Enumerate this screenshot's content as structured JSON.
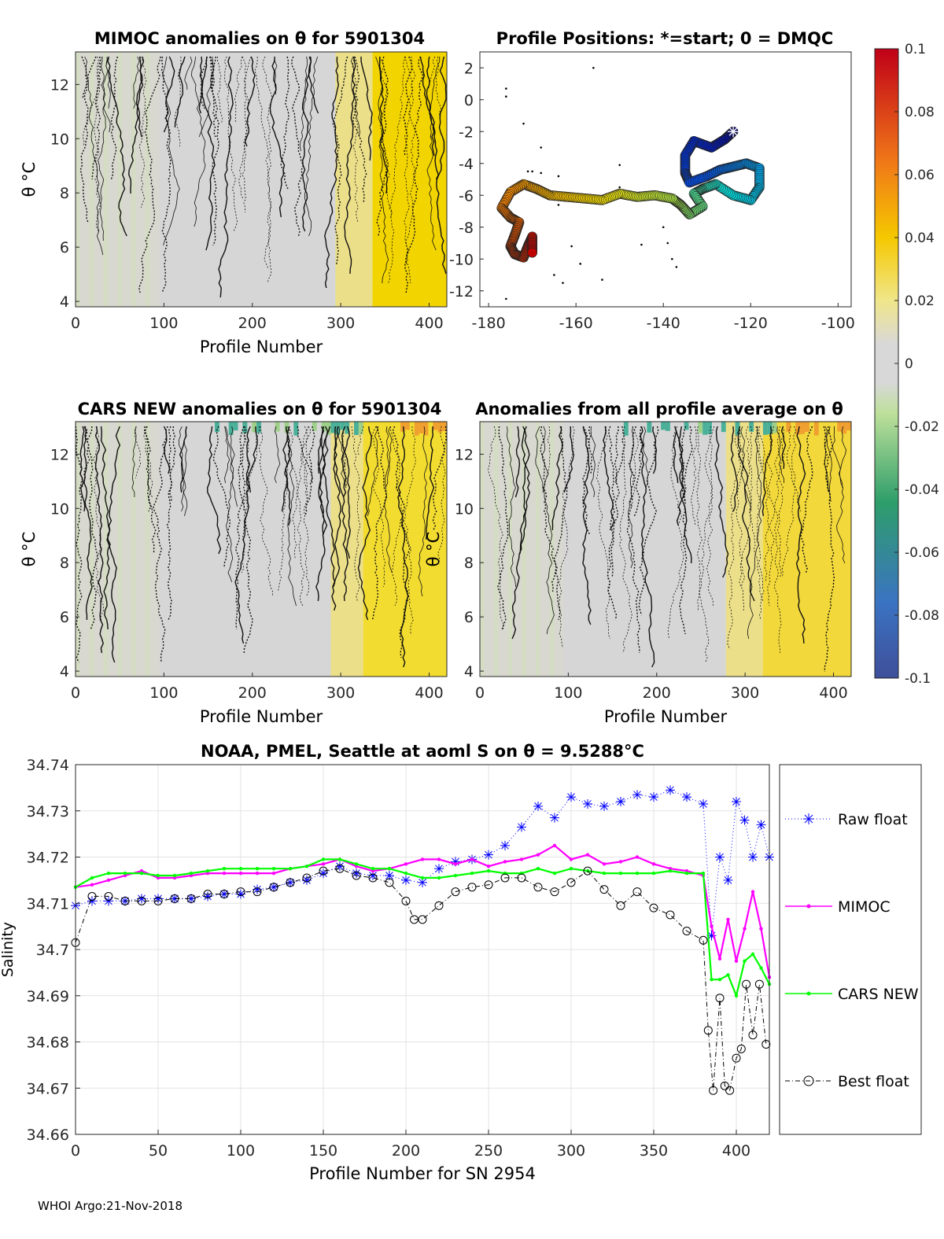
{
  "footer": "WHOI Argo:21-Nov-2018",
  "colorbar": {
    "ticks": [
      "0.1",
      "0.08",
      "0.06",
      "0.04",
      "0.02",
      "0",
      "-0.02",
      "-0.04",
      "-0.06",
      "-0.08",
      "-0.1"
    ],
    "range": [
      -0.1,
      0.1
    ]
  },
  "chart_data": [
    {
      "type": "heatmap",
      "title": "MIMOC anomalies on θ  for 5901304",
      "xlabel": "Profile Number",
      "ylabel": "θ °C",
      "xlim": [
        0,
        420
      ],
      "ylim": [
        3.8,
        13.2
      ],
      "xticks": [
        "0",
        "100",
        "200",
        "300",
        "400"
      ],
      "yticks": [
        "4",
        "6",
        "8",
        "10",
        "12"
      ],
      "description_values": {
        "low_profiles_anomaly": 0.0,
        "high_profiles_anomaly": 0.03
      }
    },
    {
      "type": "scatter",
      "title": "Profile Positions: *=start; 0 = DMQC",
      "xlim": [
        -182,
        -97
      ],
      "ylim": [
        -13,
        3
      ],
      "xticks": [
        "-180",
        "-160",
        "-140",
        "-120",
        "-100"
      ],
      "yticks": [
        "2",
        "0",
        "-2",
        "-4",
        "-6",
        "-8",
        "-10",
        "-12"
      ],
      "start": [
        -124,
        -2
      ],
      "track": [
        [
          -124,
          -2
        ],
        [
          -126,
          -2.5
        ],
        [
          -129,
          -3
        ],
        [
          -133,
          -2.6
        ],
        [
          -135,
          -3.5
        ],
        [
          -135,
          -4.6
        ],
        [
          -134,
          -5.2
        ],
        [
          -130,
          -4.8
        ],
        [
          -127,
          -4.4
        ],
        [
          -124,
          -4.2
        ],
        [
          -121,
          -4.0
        ],
        [
          -118,
          -4.3
        ],
        [
          -118,
          -5.5
        ],
        [
          -120,
          -6.3
        ],
        [
          -124,
          -6.0
        ],
        [
          -128,
          -5.3
        ],
        [
          -131,
          -5.6
        ],
        [
          -133,
          -5.9
        ],
        [
          -131,
          -6.7
        ],
        [
          -134,
          -7.2
        ],
        [
          -136,
          -6.6
        ],
        [
          -138,
          -6.2
        ],
        [
          -142,
          -6.0
        ],
        [
          -146,
          -6.1
        ],
        [
          -150,
          -5.9
        ],
        [
          -154,
          -6.3
        ],
        [
          -158,
          -6.2
        ],
        [
          -162,
          -6.1
        ],
        [
          -166,
          -6.0
        ],
        [
          -169,
          -5.6
        ],
        [
          -172,
          -5.3
        ],
        [
          -175,
          -5.8
        ],
        [
          -177,
          -6.8
        ],
        [
          -175,
          -7.4
        ],
        [
          -173,
          -7.7
        ],
        [
          -174,
          -8.5
        ],
        [
          -175,
          -9.2
        ],
        [
          -174,
          -9.7
        ],
        [
          -172,
          -9.9
        ],
        [
          -171,
          -9.2
        ],
        [
          -170,
          -8.6
        ],
        [
          -170,
          -9.6
        ]
      ],
      "scatter_points": [
        [
          -156,
          2
        ],
        [
          -176,
          0.7
        ],
        [
          -176,
          0.2
        ],
        [
          -172,
          -1.5
        ],
        [
          -168,
          -3
        ],
        [
          -170,
          -4.5
        ],
        [
          -168,
          -4.6
        ],
        [
          -164,
          -4.8
        ],
        [
          -171,
          -4.5
        ],
        [
          -150,
          -4.1
        ],
        [
          -140,
          -8
        ],
        [
          -139,
          -9
        ],
        [
          -138,
          -10
        ],
        [
          -137,
          -10.5
        ],
        [
          -165,
          -11
        ],
        [
          -163,
          -11.5
        ],
        [
          -154,
          -11.3
        ],
        [
          -176,
          -12.5
        ],
        [
          -149,
          -6.2
        ],
        [
          -150,
          -5.5
        ],
        [
          -164,
          -6.6
        ],
        [
          -161,
          -9.2
        ],
        [
          -159,
          -10.3
        ],
        [
          -145,
          -9.1
        ]
      ]
    },
    {
      "type": "heatmap",
      "title": "CARS NEW anomalies on θ for 5901304",
      "xlabel": "Profile Number",
      "ylabel": "θ °C",
      "xlim": [
        0,
        420
      ],
      "ylim": [
        3.8,
        13.2
      ],
      "xticks": [
        "0",
        "100",
        "200",
        "300",
        "400"
      ],
      "yticks": [
        "4",
        "6",
        "8",
        "10",
        "12"
      ]
    },
    {
      "type": "heatmap",
      "title": "Anomalies from all profile average on θ",
      "xlabel": "Profile Number",
      "ylabel": "θ °C",
      "xlim": [
        0,
        420
      ],
      "ylim": [
        3.8,
        13.2
      ],
      "xticks": [
        "0",
        "100",
        "200",
        "300",
        "400"
      ],
      "yticks": [
        "4",
        "6",
        "8",
        "10",
        "12"
      ]
    },
    {
      "type": "line",
      "title": "NOAA, PMEL, Seattle at aoml S on θ = 9.5288°C",
      "xlabel": "Profile Number for SN 2954",
      "ylabel": "Salinity",
      "xlim": [
        0,
        420
      ],
      "ylim": [
        34.66,
        34.74
      ],
      "xticks": [
        "0",
        "50",
        "100",
        "150",
        "200",
        "250",
        "300",
        "350",
        "400"
      ],
      "yticks": [
        "34.74",
        "34.73",
        "34.72",
        "34.71",
        "34.7",
        "34.69",
        "34.68",
        "34.67",
        "34.66"
      ],
      "grid": true,
      "legend_position": "right",
      "legend": [
        "Raw float",
        "MIMOC",
        "CARS NEW",
        "Best float"
      ],
      "series": [
        {
          "name": "Raw float",
          "color": "#0000ff",
          "x": [
            0,
            10,
            20,
            30,
            40,
            50,
            60,
            70,
            80,
            90,
            100,
            110,
            120,
            130,
            140,
            150,
            160,
            170,
            180,
            190,
            200,
            210,
            220,
            230,
            240,
            250,
            260,
            270,
            280,
            290,
            300,
            310,
            320,
            330,
            340,
            350,
            360,
            370,
            380,
            385,
            390,
            395,
            400,
            405,
            410,
            415,
            420
          ],
          "y": [
            34.7095,
            34.7105,
            34.7105,
            34.7105,
            34.711,
            34.711,
            34.711,
            34.711,
            34.7115,
            34.712,
            34.712,
            34.713,
            34.7135,
            34.7145,
            34.715,
            34.7165,
            34.718,
            34.7165,
            34.716,
            34.716,
            34.715,
            34.7145,
            34.7175,
            34.719,
            34.7195,
            34.7205,
            34.7225,
            34.7265,
            34.731,
            34.7285,
            34.733,
            34.7315,
            34.731,
            34.732,
            34.7335,
            34.733,
            34.7345,
            34.733,
            34.7315,
            34.703,
            34.72,
            34.715,
            34.732,
            34.728,
            34.72,
            34.727,
            34.72
          ]
        },
        {
          "name": "MIMOC",
          "color": "#ff00ff",
          "x": [
            0,
            10,
            20,
            30,
            40,
            50,
            60,
            70,
            80,
            90,
            100,
            110,
            120,
            130,
            140,
            150,
            160,
            170,
            180,
            190,
            200,
            210,
            220,
            230,
            240,
            250,
            260,
            270,
            280,
            290,
            300,
            310,
            320,
            330,
            340,
            350,
            360,
            370,
            380,
            385,
            390,
            395,
            400,
            405,
            410,
            415,
            420
          ],
          "y": [
            34.7135,
            34.714,
            34.715,
            34.716,
            34.717,
            34.7155,
            34.7155,
            34.716,
            34.7165,
            34.7165,
            34.7165,
            34.7165,
            34.7165,
            34.7175,
            34.718,
            34.7185,
            34.7195,
            34.718,
            34.717,
            34.7175,
            34.7185,
            34.7195,
            34.7195,
            34.7185,
            34.7195,
            34.718,
            34.719,
            34.7195,
            34.7205,
            34.7225,
            34.7195,
            34.7205,
            34.7185,
            34.719,
            34.72,
            34.7185,
            34.7175,
            34.717,
            34.716,
            34.705,
            34.698,
            34.7065,
            34.6975,
            34.7045,
            34.7125,
            34.7045,
            34.694
          ]
        },
        {
          "name": "CARS NEW",
          "color": "#00ff00",
          "x": [
            0,
            10,
            20,
            30,
            40,
            50,
            60,
            70,
            80,
            90,
            100,
            110,
            120,
            130,
            140,
            150,
            160,
            170,
            180,
            190,
            200,
            210,
            220,
            230,
            240,
            250,
            260,
            270,
            280,
            290,
            300,
            310,
            320,
            330,
            340,
            350,
            360,
            370,
            380,
            385,
            390,
            395,
            400,
            405,
            410,
            415,
            420
          ],
          "y": [
            34.7135,
            34.7155,
            34.7165,
            34.7165,
            34.7165,
            34.716,
            34.716,
            34.7165,
            34.717,
            34.7175,
            34.7175,
            34.7175,
            34.7175,
            34.7175,
            34.718,
            34.7195,
            34.7195,
            34.7185,
            34.7175,
            34.7175,
            34.7165,
            34.7155,
            34.7155,
            34.716,
            34.7165,
            34.717,
            34.7165,
            34.7165,
            34.7175,
            34.7165,
            34.7175,
            34.717,
            34.7165,
            34.7165,
            34.7165,
            34.7165,
            34.717,
            34.7165,
            34.7165,
            34.6935,
            34.6935,
            34.6945,
            34.69,
            34.6975,
            34.699,
            34.696,
            34.6925
          ]
        },
        {
          "name": "Best float",
          "color": "#000000",
          "x": [
            0,
            10,
            20,
            30,
            40,
            50,
            60,
            70,
            80,
            90,
            100,
            110,
            120,
            130,
            140,
            150,
            160,
            170,
            180,
            190,
            200,
            205,
            210,
            220,
            230,
            240,
            250,
            260,
            270,
            280,
            290,
            300,
            310,
            320,
            330,
            340,
            350,
            360,
            370,
            380,
            383,
            386,
            390,
            393,
            396,
            400,
            403,
            406,
            410,
            414,
            418
          ],
          "y": [
            34.7015,
            34.7115,
            34.7115,
            34.7105,
            34.7105,
            34.7105,
            34.711,
            34.711,
            34.712,
            34.712,
            34.7125,
            34.7125,
            34.7135,
            34.7145,
            34.7155,
            34.717,
            34.7175,
            34.716,
            34.7155,
            34.7145,
            34.7105,
            34.7065,
            34.7065,
            34.7095,
            34.7125,
            34.7135,
            34.714,
            34.7155,
            34.7155,
            34.7135,
            34.7125,
            34.7145,
            34.717,
            34.713,
            34.7095,
            34.7125,
            34.709,
            34.7075,
            34.704,
            34.702,
            34.6825,
            34.6695,
            34.6895,
            34.6705,
            34.6695,
            34.6765,
            34.6785,
            34.6925,
            34.6815,
            34.6925,
            34.6795
          ]
        }
      ]
    }
  ]
}
